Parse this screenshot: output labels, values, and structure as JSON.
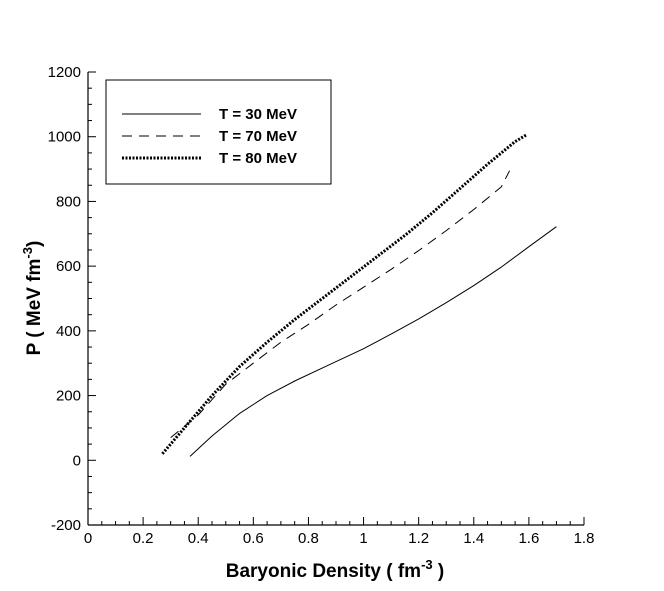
{
  "chart_data": {
    "type": "line",
    "title": "",
    "xlabel": "Baryonic Density ( fm",
    "xlabel_sup": "-3",
    "xlabel_tail": " )",
    "ylabel": "P ( MeV fm",
    "ylabel_sup": "-3",
    "ylabel_tail": ")",
    "xlim": [
      0,
      1.8
    ],
    "ylim": [
      -200,
      1200
    ],
    "xticks": [
      0,
      0.2,
      0.4,
      0.6,
      0.8,
      1,
      1.2,
      1.4,
      1.6,
      1.8
    ],
    "xtick_labels": [
      "0",
      "0.2",
      "0.4",
      "0.6",
      "0.8",
      "1",
      "1.2",
      "1.4",
      "1.6",
      "1.8"
    ],
    "yticks": [
      -200,
      0,
      200,
      400,
      600,
      800,
      1000,
      1200
    ],
    "ytick_labels": [
      "-200",
      "0",
      "200",
      "400",
      "600",
      "800",
      "1000",
      "1200"
    ],
    "grid": false,
    "legend_position": "top-left",
    "series": [
      {
        "name": "T = 30 MeV",
        "style": "solid",
        "color": "#000000",
        "x": [
          0.37,
          0.45,
          0.55,
          0.65,
          0.75,
          0.85,
          1.0,
          1.1,
          1.2,
          1.3,
          1.4,
          1.5,
          1.6,
          1.7
        ],
        "y": [
          12,
          75,
          145,
          200,
          245,
          285,
          345,
          390,
          437,
          487,
          540,
          597,
          660,
          722
        ]
      },
      {
        "name": "T = 70 MeV",
        "style": "dashed",
        "color": "#000000",
        "x": [
          0.3,
          0.4,
          0.5,
          0.6,
          0.7,
          0.8,
          0.9,
          1.0,
          1.1,
          1.2,
          1.3,
          1.4,
          1.5,
          1.53
        ],
        "y": [
          70,
          140,
          235,
          300,
          365,
          420,
          480,
          535,
          590,
          648,
          710,
          775,
          845,
          895
        ]
      },
      {
        "name": "T = 80 MeV",
        "style": "dotted",
        "color": "#000000",
        "x": [
          0.27,
          0.35,
          0.45,
          0.55,
          0.65,
          0.75,
          0.85,
          0.95,
          1.05,
          1.15,
          1.25,
          1.35,
          1.45,
          1.55,
          1.59
        ],
        "y": [
          20,
          100,
          200,
          290,
          365,
          435,
          500,
          565,
          630,
          695,
          765,
          840,
          915,
          985,
          1005
        ]
      }
    ]
  }
}
